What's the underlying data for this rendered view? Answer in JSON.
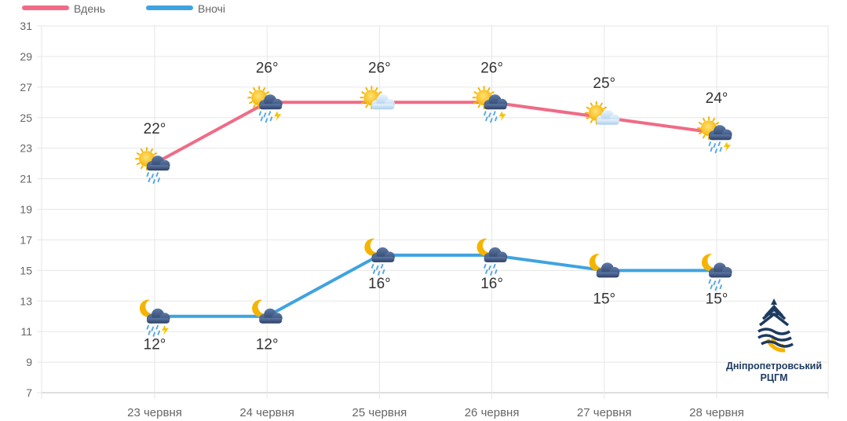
{
  "chart_data": {
    "type": "line",
    "categories": [
      "23 червня",
      "24 червня",
      "25 червня",
      "26 червня",
      "27 червня",
      "28 червня"
    ],
    "series": [
      {
        "name": "Вдень",
        "color": "#f06b86",
        "values": [
          22,
          26,
          26,
          26,
          25,
          24
        ],
        "labels": [
          "22°",
          "26°",
          "26°",
          "26°",
          "25°",
          "24°"
        ],
        "icons": [
          "sun-cloud-rain-icon",
          "sun-cloud-storm-icon",
          "sun-cloud-icon",
          "sun-cloud-storm-icon",
          "sun-cloud-icon",
          "sun-cloud-storm-icon"
        ]
      },
      {
        "name": "Вночі",
        "color": "#3fa3e0",
        "values": [
          12,
          12,
          16,
          16,
          15,
          15
        ],
        "labels": [
          "12°",
          "12°",
          "16°",
          "16°",
          "15°",
          "15°"
        ],
        "icons": [
          "moon-cloud-storm-icon",
          "moon-cloud-icon",
          "moon-cloud-rain-icon",
          "moon-cloud-rain-icon",
          "moon-cloud-icon",
          "moon-cloud-rain-icon"
        ]
      }
    ],
    "ylim": [
      7,
      31
    ],
    "yticks": [
      7,
      9,
      11,
      13,
      15,
      17,
      19,
      21,
      23,
      25,
      27,
      29,
      31
    ],
    "grid": true,
    "legend": "top-left"
  },
  "logo": {
    "line1": "Дніпропетровський",
    "line2": "РЦГМ"
  }
}
